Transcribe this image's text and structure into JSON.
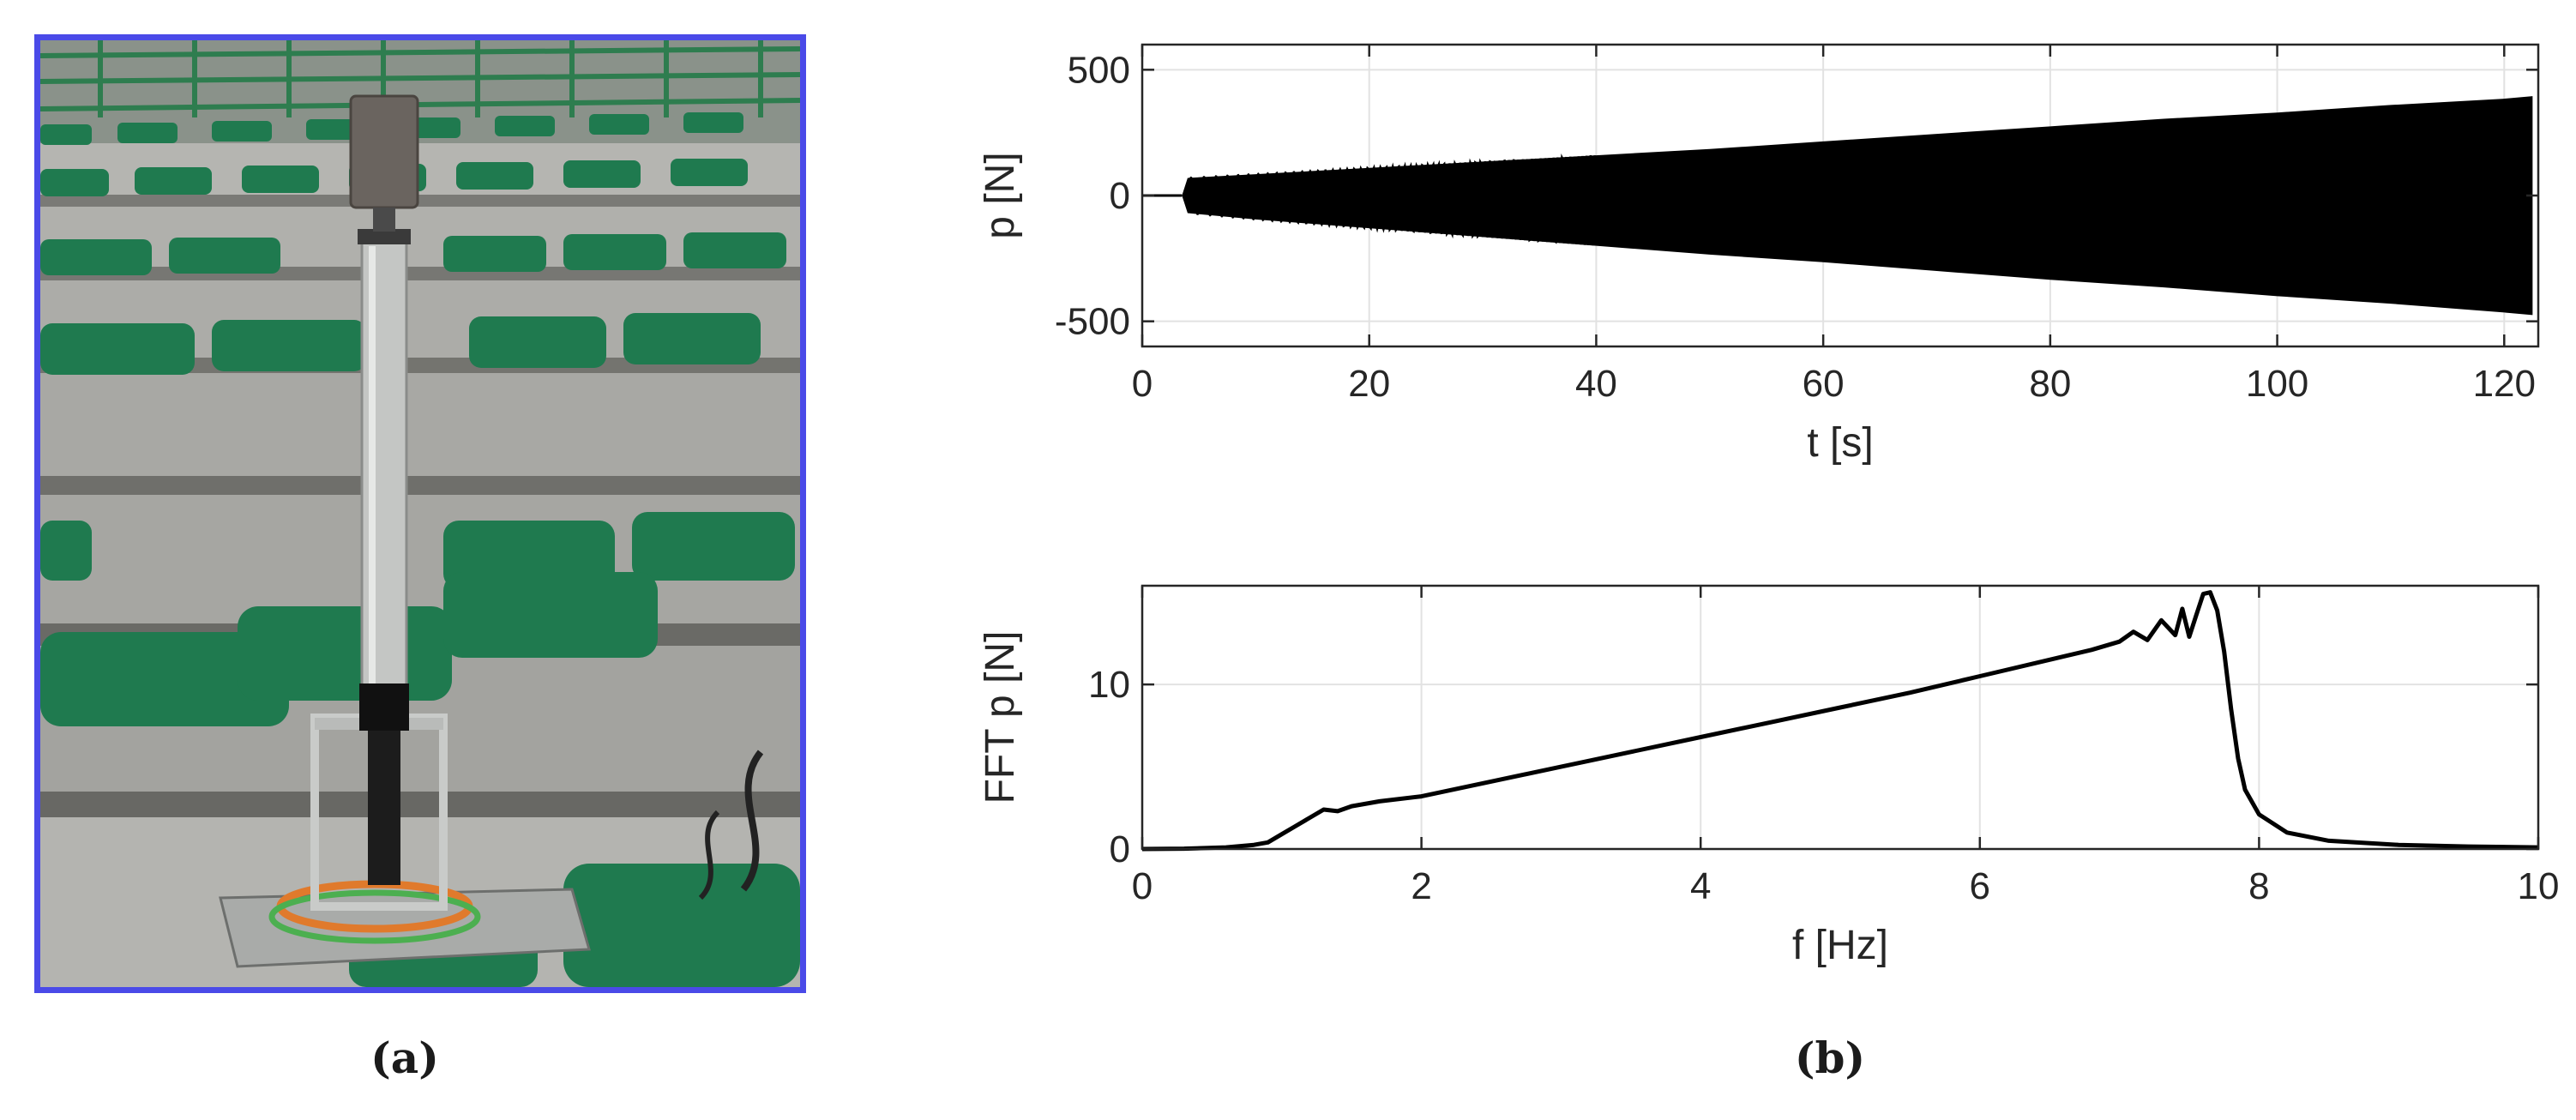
{
  "captions": {
    "a": "(a)",
    "b": "(b)"
  },
  "photo": {
    "subject": "electrodynamic shaker on steel column placed on stadium grandstand steps",
    "colors": {
      "frame": "#4a4ae8",
      "seat": "#1f7a4f",
      "concrete": "#a5a5a1",
      "cable_orange": "#e07a2c",
      "cable_green": "#4caf50"
    }
  },
  "chart_data": [
    {
      "type": "line",
      "xlabel": "t [s]",
      "ylabel": "p [N]",
      "xlim": [
        0,
        123
      ],
      "ylim": [
        -600,
        600
      ],
      "xticks": [
        0,
        20,
        40,
        60,
        80,
        100,
        120
      ],
      "yticks": [
        -500,
        0,
        500
      ],
      "grid": true,
      "line_color": "#000000",
      "envelope": {
        "t": [
          0,
          3.5,
          4,
          10,
          20,
          30,
          40,
          50,
          60,
          70,
          80,
          90,
          100,
          110,
          120,
          122.5
        ],
        "upper": [
          0,
          0,
          70,
          85,
          110,
          135,
          160,
          185,
          215,
          245,
          275,
          305,
          330,
          360,
          385,
          395
        ],
        "lower": [
          0,
          0,
          -70,
          -95,
          -130,
          -165,
          -200,
          -235,
          -265,
          -300,
          -335,
          -365,
          -400,
          -430,
          -465,
          -475
        ]
      }
    },
    {
      "type": "line",
      "xlabel": "f [Hz]",
      "ylabel": "FFT p [N]",
      "xlim": [
        0,
        10
      ],
      "ylim": [
        0,
        16
      ],
      "xticks": [
        0,
        2,
        4,
        6,
        8,
        10
      ],
      "yticks": [
        0,
        10
      ],
      "grid": true,
      "line_color": "#000000",
      "x": [
        0,
        0.3,
        0.6,
        0.8,
        0.9,
        1.0,
        1.1,
        1.2,
        1.3,
        1.4,
        1.5,
        1.7,
        2.0,
        2.5,
        3.0,
        3.5,
        4.0,
        4.5,
        5.0,
        5.5,
        6.0,
        6.5,
        6.8,
        7.0,
        7.1,
        7.2,
        7.3,
        7.4,
        7.45,
        7.5,
        7.55,
        7.6,
        7.65,
        7.7,
        7.75,
        7.8,
        7.85,
        7.9,
        8.0,
        8.2,
        8.5,
        9.0,
        9.5,
        10.0
      ],
      "y": [
        0,
        0.02,
        0.1,
        0.25,
        0.4,
        0.9,
        1.4,
        1.9,
        2.4,
        2.3,
        2.6,
        2.9,
        3.2,
        4.1,
        5.0,
        5.9,
        6.8,
        7.7,
        8.6,
        9.5,
        10.5,
        11.5,
        12.1,
        12.6,
        13.2,
        12.7,
        13.9,
        13.0,
        14.6,
        12.9,
        14.2,
        15.5,
        15.6,
        14.5,
        12.0,
        8.5,
        5.5,
        3.6,
        2.1,
        1.0,
        0.5,
        0.25,
        0.15,
        0.1
      ]
    }
  ]
}
